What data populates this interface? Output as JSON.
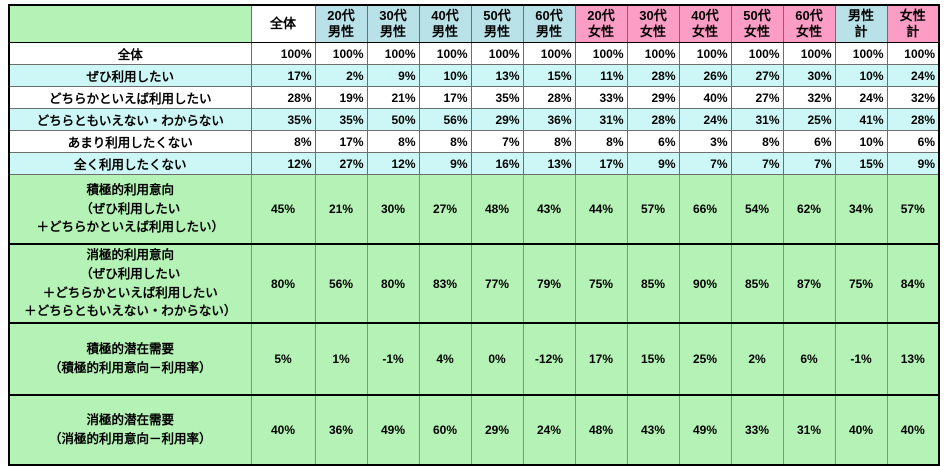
{
  "colors": {
    "green_fill": "#b5f2b5",
    "cyan_fill": "#cdf6f6",
    "male_header_blue": "#b9e1e8",
    "female_header_pink": "#fc9dc5",
    "grid_line": "#6e6e6e",
    "frame": "#000000"
  },
  "table": {
    "corner_label": "",
    "header": {
      "columns": [
        {
          "text": "全体",
          "bg": "white"
        },
        {
          "text": "20代\n男性",
          "bg": "blue"
        },
        {
          "text": "30代\n男性",
          "bg": "blue"
        },
        {
          "text": "40代\n男性",
          "bg": "blue"
        },
        {
          "text": "50代\n男性",
          "bg": "blue"
        },
        {
          "text": "60代\n男性",
          "bg": "blue"
        },
        {
          "text": "20代\n女性",
          "bg": "pink"
        },
        {
          "text": "30代\n女性",
          "bg": "pink"
        },
        {
          "text": "40代\n女性",
          "bg": "pink"
        },
        {
          "text": "50代\n女性",
          "bg": "pink"
        },
        {
          "text": "60代\n女性",
          "bg": "pink"
        },
        {
          "text": "男性\n計",
          "bg": "blue"
        },
        {
          "text": "女性\n計",
          "bg": "pink"
        }
      ]
    },
    "rate_rows": [
      {
        "label": "全体",
        "bg": "white",
        "values": [
          "100%",
          "100%",
          "100%",
          "100%",
          "100%",
          "100%",
          "100%",
          "100%",
          "100%",
          "100%",
          "100%",
          "100%",
          "100%"
        ]
      },
      {
        "label": "ぜひ利用したい",
        "bg": "cyan",
        "values": [
          "17%",
          "2%",
          "9%",
          "10%",
          "13%",
          "15%",
          "11%",
          "28%",
          "26%",
          "27%",
          "30%",
          "10%",
          "24%"
        ]
      },
      {
        "label": "どちらかといえば利用したい",
        "bg": "white",
        "values": [
          "28%",
          "19%",
          "21%",
          "17%",
          "35%",
          "28%",
          "33%",
          "29%",
          "40%",
          "27%",
          "32%",
          "24%",
          "32%"
        ]
      },
      {
        "label": "どちらともいえない・わからない",
        "bg": "cyan",
        "values": [
          "35%",
          "35%",
          "50%",
          "56%",
          "29%",
          "36%",
          "31%",
          "28%",
          "24%",
          "31%",
          "25%",
          "41%",
          "28%"
        ]
      },
      {
        "label": "あまり利用したくない",
        "bg": "white",
        "values": [
          "8%",
          "17%",
          "8%",
          "8%",
          "7%",
          "8%",
          "8%",
          "6%",
          "3%",
          "8%",
          "6%",
          "10%",
          "6%"
        ]
      },
      {
        "label": "全く利用したくない",
        "bg": "cyan",
        "values": [
          "12%",
          "27%",
          "12%",
          "9%",
          "16%",
          "13%",
          "17%",
          "9%",
          "7%",
          "7%",
          "7%",
          "15%",
          "9%"
        ]
      }
    ],
    "summary_rows": [
      {
        "label": "積極的利用意向\n（ぜひ利用したい\n＋どちらかといえば利用したい）",
        "values": [
          "45%",
          "21%",
          "30%",
          "27%",
          "48%",
          "43%",
          "44%",
          "57%",
          "66%",
          "54%",
          "62%",
          "34%",
          "57%"
        ]
      },
      {
        "label": "消極的利用意向\n（ぜひ利用したい\n＋どちらかといえば利用したい\n＋どちらともいえない・わからない）",
        "values": [
          "80%",
          "56%",
          "80%",
          "83%",
          "77%",
          "79%",
          "75%",
          "85%",
          "90%",
          "85%",
          "87%",
          "75%",
          "84%"
        ]
      },
      {
        "label": "積極的潜在需要\n（積極的利用意向－利用率）",
        "values": [
          "5%",
          "1%",
          "-1%",
          "4%",
          "0%",
          "-12%",
          "17%",
          "15%",
          "25%",
          "2%",
          "6%",
          "-1%",
          "13%"
        ]
      },
      {
        "label": "消極的潜在需要\n（消極的利用意向－利用率）",
        "values": [
          "40%",
          "36%",
          "49%",
          "60%",
          "29%",
          "24%",
          "48%",
          "43%",
          "49%",
          "33%",
          "31%",
          "40%",
          "40%"
        ]
      }
    ]
  },
  "chart_data": {
    "type": "table",
    "unit": "%",
    "columns": [
      "全体",
      "20代男性",
      "30代男性",
      "40代男性",
      "50代男性",
      "60代男性",
      "20代女性",
      "30代女性",
      "40代女性",
      "50代女性",
      "60代女性",
      "男性計",
      "女性計"
    ],
    "rows": [
      {
        "label": "全体",
        "values": [
          100,
          100,
          100,
          100,
          100,
          100,
          100,
          100,
          100,
          100,
          100,
          100,
          100
        ]
      },
      {
        "label": "ぜひ利用したい",
        "values": [
          17,
          2,
          9,
          10,
          13,
          15,
          11,
          28,
          26,
          27,
          30,
          10,
          24
        ]
      },
      {
        "label": "どちらかといえば利用したい",
        "values": [
          28,
          19,
          21,
          17,
          35,
          28,
          33,
          29,
          40,
          27,
          32,
          24,
          32
        ]
      },
      {
        "label": "どちらともいえない・わからない",
        "values": [
          35,
          35,
          50,
          56,
          29,
          36,
          31,
          28,
          24,
          31,
          25,
          41,
          28
        ]
      },
      {
        "label": "あまり利用したくない",
        "values": [
          8,
          17,
          8,
          8,
          7,
          8,
          8,
          6,
          3,
          8,
          6,
          10,
          6
        ]
      },
      {
        "label": "全く利用したくない",
        "values": [
          12,
          27,
          12,
          9,
          16,
          13,
          17,
          9,
          7,
          7,
          7,
          15,
          9
        ]
      },
      {
        "label": "積極的利用意向（ぜひ利用したい＋どちらかといえば利用したい）",
        "values": [
          45,
          21,
          30,
          27,
          48,
          43,
          44,
          57,
          66,
          54,
          62,
          34,
          57
        ]
      },
      {
        "label": "消極的利用意向（ぜひ利用したい＋どちらかといえば利用したい＋どちらともいえない・わからない）",
        "values": [
          80,
          56,
          80,
          83,
          77,
          79,
          75,
          85,
          90,
          85,
          87,
          75,
          84
        ]
      },
      {
        "label": "積極的潜在需要（積極的利用意向－利用率）",
        "values": [
          5,
          1,
          -1,
          4,
          0,
          -12,
          17,
          15,
          25,
          2,
          6,
          -1,
          13
        ]
      },
      {
        "label": "消極的潜在需要（消極的利用意向－利用率）",
        "values": [
          40,
          36,
          49,
          60,
          29,
          24,
          48,
          43,
          49,
          33,
          31,
          40,
          40
        ]
      }
    ]
  }
}
